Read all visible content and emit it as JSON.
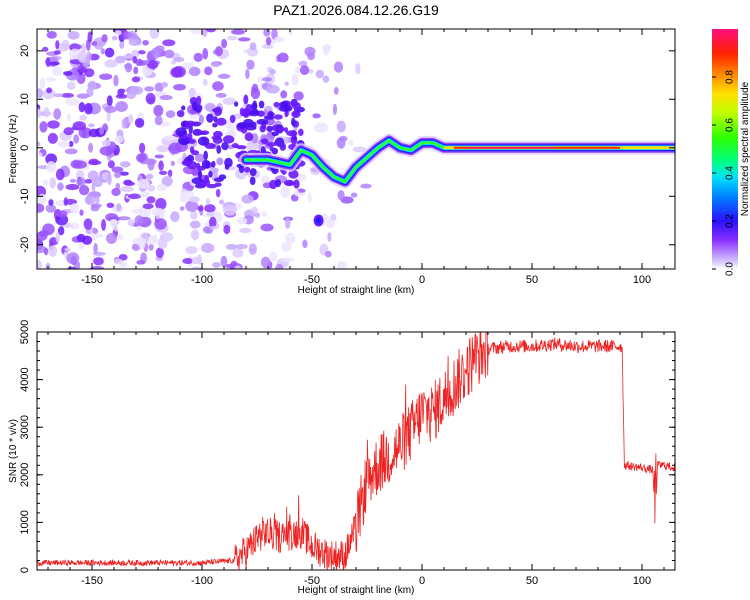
{
  "title": "PAZ1.2026.084.12.26.G19",
  "colors": {
    "line": "#ee2222",
    "frame": "#000000"
  },
  "chart_data": [
    {
      "type": "heatmap",
      "name": "spectrogram",
      "xlabel": "Height of straight line (km)",
      "ylabel": "Frequency (Hz)",
      "xlim": [
        -175,
        115
      ],
      "ylim": [
        -25,
        24.5
      ],
      "xticks": [
        -150,
        -100,
        -50,
        0,
        50,
        100
      ],
      "yticks": [
        -20,
        -10,
        0,
        10,
        20
      ],
      "colorbar": {
        "label": "Normalized spectral amplitude",
        "ticks": [
          "0.0",
          "0.2",
          "0.4",
          "0.6",
          "0.8"
        ],
        "range": [
          0,
          1
        ]
      },
      "signal_track": [
        {
          "x": -80,
          "y": -2.5
        },
        {
          "x": -70,
          "y": -2.5
        },
        {
          "x": -60,
          "y": -3.5
        },
        {
          "x": -55,
          "y": -0.5
        },
        {
          "x": -50,
          "y": -1.5
        },
        {
          "x": -45,
          "y": -4
        },
        {
          "x": -40,
          "y": -6
        },
        {
          "x": -35,
          "y": -7
        },
        {
          "x": -30,
          "y": -4
        },
        {
          "x": -25,
          "y": -2
        },
        {
          "x": -20,
          "y": 0
        },
        {
          "x": -15,
          "y": 1.5
        },
        {
          "x": -10,
          "y": 0
        },
        {
          "x": -5,
          "y": -0.5
        },
        {
          "x": 0,
          "y": 1
        },
        {
          "x": 5,
          "y": 1
        },
        {
          "x": 10,
          "y": 0
        },
        {
          "x": 115,
          "y": 0
        }
      ]
    },
    {
      "type": "line",
      "name": "snr",
      "xlabel": "Height of straight line (km)",
      "ylabel": "SNR (10 * v/v)",
      "xlim": [
        -175,
        115
      ],
      "ylim": [
        0,
        5000
      ],
      "xticks": [
        -150,
        -100,
        -50,
        0,
        50,
        100
      ],
      "yticks": [
        0,
        1000,
        2000,
        3000,
        4000,
        5000
      ],
      "envelope": [
        {
          "x": -175,
          "y": 150
        },
        {
          "x": -100,
          "y": 150
        },
        {
          "x": -85,
          "y": 200
        },
        {
          "x": -80,
          "y": 400
        },
        {
          "x": -72,
          "y": 800
        },
        {
          "x": -65,
          "y": 700
        },
        {
          "x": -55,
          "y": 800
        },
        {
          "x": -50,
          "y": 500
        },
        {
          "x": -42,
          "y": 300
        },
        {
          "x": -35,
          "y": 300
        },
        {
          "x": -30,
          "y": 900
        },
        {
          "x": -25,
          "y": 1900
        },
        {
          "x": -20,
          "y": 2200
        },
        {
          "x": -15,
          "y": 2400
        },
        {
          "x": -10,
          "y": 2600
        },
        {
          "x": -5,
          "y": 2900
        },
        {
          "x": 0,
          "y": 3300
        },
        {
          "x": 5,
          "y": 3300
        },
        {
          "x": 10,
          "y": 3600
        },
        {
          "x": 15,
          "y": 3900
        },
        {
          "x": 20,
          "y": 4200
        },
        {
          "x": 25,
          "y": 4500
        },
        {
          "x": 30,
          "y": 4650
        },
        {
          "x": 40,
          "y": 4700
        },
        {
          "x": 50,
          "y": 4700
        },
        {
          "x": 60,
          "y": 4750
        },
        {
          "x": 70,
          "y": 4700
        },
        {
          "x": 80,
          "y": 4700
        },
        {
          "x": 91,
          "y": 4700
        },
        {
          "x": 92,
          "y": 2200
        },
        {
          "x": 100,
          "y": 2150
        },
        {
          "x": 105,
          "y": 2100
        },
        {
          "x": 106,
          "y": 1000
        },
        {
          "x": 107,
          "y": 2200
        },
        {
          "x": 110,
          "y": 2200
        },
        {
          "x": 115,
          "y": 2150
        }
      ]
    }
  ]
}
